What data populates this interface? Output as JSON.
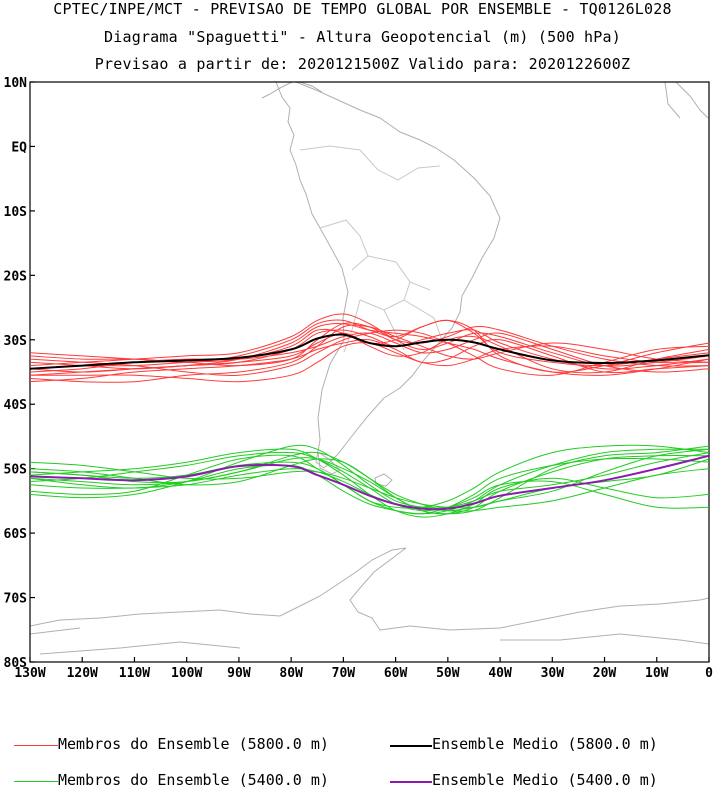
{
  "header": {
    "line1": "CPTEC/INPE/MCT - PREVISAO DE TEMPO GLOBAL POR ENSEMBLE - TQ0126L028",
    "line2": "Diagrama \"Spaguetti\" - Altura Geopotencial (m) (500 hPa)",
    "line3": "Previsao a partir de: 2020121500Z  Valido para: 2020122600Z"
  },
  "colors": {
    "member_5800": "#ff3a3a",
    "mean_5800": "#000000",
    "member_5400": "#22cc22",
    "mean_5400": "#8a1ab0",
    "coast": "#b0b0b0"
  },
  "legend": [
    {
      "label": "Membros do Ensemble (5800.0 m)",
      "color": "#ff3a3a"
    },
    {
      "label": "Ensemble Medio (5800.0 m)",
      "color": "#000000"
    },
    {
      "label": "Membros do Ensemble (5400.0 m)",
      "color": "#22cc22"
    },
    {
      "label": "Ensemble Medio (5400.0 m)",
      "color": "#8a1ab0"
    }
  ],
  "chart_data": {
    "type": "line",
    "xlim": [
      -130,
      0
    ],
    "ylim": [
      -80,
      10
    ],
    "x_ticks": [
      {
        "v": -130,
        "label": "130W"
      },
      {
        "v": -120,
        "label": "120W"
      },
      {
        "v": -110,
        "label": "110W"
      },
      {
        "v": -100,
        "label": "100W"
      },
      {
        "v": -90,
        "label": "90W"
      },
      {
        "v": -80,
        "label": "80W"
      },
      {
        "v": -70,
        "label": "70W"
      },
      {
        "v": -60,
        "label": "60W"
      },
      {
        "v": -50,
        "label": "50W"
      },
      {
        "v": -40,
        "label": "40W"
      },
      {
        "v": -30,
        "label": "30W"
      },
      {
        "v": -20,
        "label": "20W"
      },
      {
        "v": -10,
        "label": "10W"
      },
      {
        "v": 0,
        "label": "0"
      }
    ],
    "y_ticks": [
      {
        "v": 10,
        "label": "10N"
      },
      {
        "v": 0,
        "label": "EQ"
      },
      {
        "v": -10,
        "label": "10S"
      },
      {
        "v": -20,
        "label": "20S"
      },
      {
        "v": -30,
        "label": "30S"
      },
      {
        "v": -40,
        "label": "40S"
      },
      {
        "v": -50,
        "label": "50S"
      },
      {
        "v": -60,
        "label": "60S"
      },
      {
        "v": -70,
        "label": "70S"
      },
      {
        "v": -80,
        "label": "80S"
      }
    ],
    "x": [
      -130,
      -120,
      -110,
      -100,
      -90,
      -80,
      -75,
      -70,
      -65,
      -60,
      -55,
      -50,
      -45,
      -40,
      -30,
      -20,
      -10,
      0
    ],
    "series": [
      {
        "group": "member_5800",
        "values": [
          -32.0,
          -32.5,
          -33.0,
          -33.5,
          -32.5,
          -30.0,
          -27.5,
          -27.0,
          -28.5,
          -29.5,
          -28.0,
          -27.0,
          -29.0,
          -32.0,
          -33.5,
          -34.0,
          -33.0,
          -32.0
        ]
      },
      {
        "group": "member_5800",
        "values": [
          -34.5,
          -35.0,
          -34.5,
          -34.0,
          -33.5,
          -31.5,
          -29.0,
          -28.5,
          -29.5,
          -31.0,
          -30.0,
          -29.0,
          -28.5,
          -30.5,
          -33.0,
          -34.5,
          -34.0,
          -33.0
        ]
      },
      {
        "group": "member_5800",
        "values": [
          -36.5,
          -36.0,
          -35.0,
          -34.5,
          -34.0,
          -33.0,
          -31.5,
          -30.5,
          -30.0,
          -31.5,
          -33.5,
          -33.0,
          -31.0,
          -30.0,
          -32.5,
          -35.0,
          -34.5,
          -34.0
        ]
      },
      {
        "group": "member_5800",
        "values": [
          -33.0,
          -33.5,
          -34.0,
          -35.0,
          -35.5,
          -34.0,
          -32.0,
          -30.0,
          -29.0,
          -28.5,
          -29.0,
          -30.5,
          -32.5,
          -34.5,
          -35.5,
          -33.5,
          -31.5,
          -31.0
        ]
      },
      {
        "group": "member_5800",
        "values": [
          -35.5,
          -35.5,
          -35.5,
          -36.0,
          -36.5,
          -35.5,
          -33.5,
          -31.0,
          -30.5,
          -32.0,
          -33.5,
          -34.0,
          -33.0,
          -31.5,
          -31.0,
          -32.5,
          -33.5,
          -33.5
        ]
      },
      {
        "group": "member_5800",
        "values": [
          -34.0,
          -33.5,
          -33.0,
          -32.5,
          -32.0,
          -29.5,
          -27.0,
          -26.0,
          -27.5,
          -30.0,
          -31.5,
          -30.5,
          -29.0,
          -29.5,
          -32.0,
          -34.0,
          -33.5,
          -32.5
        ]
      },
      {
        "group": "member_5800",
        "values": [
          -33.5,
          -34.0,
          -34.5,
          -34.0,
          -33.5,
          -32.5,
          -30.5,
          -29.0,
          -30.5,
          -30.0,
          -28.0,
          -27.0,
          -28.5,
          -32.5,
          -35.0,
          -34.0,
          -32.0,
          -30.5
        ]
      },
      {
        "group": "member_5800",
        "values": [
          -35.0,
          -34.5,
          -33.5,
          -33.0,
          -33.0,
          -32.0,
          -31.0,
          -29.5,
          -29.0,
          -30.5,
          -32.0,
          -31.5,
          -30.0,
          -29.0,
          -31.5,
          -34.0,
          -35.0,
          -34.5
        ]
      },
      {
        "group": "member_5800",
        "values": [
          -36.0,
          -36.5,
          -36.5,
          -35.5,
          -35.0,
          -33.5,
          -31.0,
          -28.0,
          -28.0,
          -29.5,
          -31.0,
          -32.5,
          -33.0,
          -32.0,
          -30.5,
          -31.5,
          -33.0,
          -33.5
        ]
      },
      {
        "group": "member_5800",
        "values": [
          -32.5,
          -33.0,
          -33.0,
          -33.5,
          -34.0,
          -33.0,
          -30.0,
          -27.5,
          -28.0,
          -30.0,
          -30.5,
          -29.5,
          -28.0,
          -28.5,
          -31.0,
          -33.0,
          -34.0,
          -34.0
        ]
      },
      {
        "group": "member_5800",
        "values": [
          -34.5,
          -34.0,
          -34.0,
          -33.5,
          -33.0,
          -31.0,
          -28.5,
          -29.0,
          -31.0,
          -32.5,
          -32.0,
          -30.0,
          -29.5,
          -31.0,
          -34.5,
          -35.0,
          -33.0,
          -31.5
        ]
      },
      {
        "group": "member_5800",
        "values": [
          -35.5,
          -35.0,
          -34.5,
          -34.0,
          -33.0,
          -30.5,
          -28.0,
          -27.5,
          -28.5,
          -29.0,
          -29.5,
          -30.5,
          -31.5,
          -33.0,
          -35.0,
          -35.5,
          -34.5,
          -33.0
        ]
      },
      {
        "group": "mean_5800",
        "values": [
          -34.5,
          -34.0,
          -33.5,
          -33.2,
          -32.8,
          -31.5,
          -29.8,
          -29.2,
          -30.5,
          -31.0,
          -30.4,
          -30.0,
          -30.4,
          -31.5,
          -33.2,
          -33.6,
          -33.2,
          -32.4
        ]
      },
      {
        "group": "member_5400",
        "values": [
          -51.5,
          -52.5,
          -53.0,
          -52.0,
          -50.0,
          -49.5,
          -51.0,
          -53.5,
          -55.5,
          -56.5,
          -57.0,
          -56.5,
          -55.0,
          -52.5,
          -49.5,
          -47.5,
          -47.0,
          -47.0
        ]
      },
      {
        "group": "member_5400",
        "values": [
          -50.0,
          -50.5,
          -51.5,
          -52.5,
          -52.0,
          -49.5,
          -48.5,
          -49.0,
          -51.5,
          -54.5,
          -56.5,
          -57.0,
          -56.0,
          -53.5,
          -50.5,
          -48.5,
          -48.0,
          -48.0
        ]
      },
      {
        "group": "member_5400",
        "values": [
          -53.5,
          -54.0,
          -53.5,
          -51.0,
          -48.5,
          -48.0,
          -50.0,
          -52.5,
          -55.0,
          -56.0,
          -56.0,
          -55.0,
          -53.0,
          -50.5,
          -47.5,
          -46.5,
          -46.5,
          -47.5
        ]
      },
      {
        "group": "member_5400",
        "values": [
          -52.0,
          -51.5,
          -50.5,
          -49.5,
          -48.0,
          -47.5,
          -48.5,
          -50.5,
          -53.0,
          -55.5,
          -56.5,
          -56.0,
          -54.5,
          -52.5,
          -52.0,
          -54.0,
          -56.0,
          -56.0
        ]
      },
      {
        "group": "member_5400",
        "values": [
          -49.0,
          -49.5,
          -50.5,
          -51.5,
          -51.5,
          -50.5,
          -50.5,
          -51.5,
          -53.0,
          -54.5,
          -55.5,
          -56.0,
          -56.0,
          -55.0,
          -53.0,
          -52.0,
          -51.0,
          -48.5
        ]
      },
      {
        "group": "member_5400",
        "values": [
          -51.0,
          -50.5,
          -50.0,
          -49.0,
          -47.5,
          -47.0,
          -48.5,
          -51.0,
          -54.0,
          -56.5,
          -57.5,
          -57.0,
          -55.5,
          -53.0,
          -51.5,
          -53.0,
          -54.5,
          -54.0
        ]
      },
      {
        "group": "member_5400",
        "values": [
          -50.5,
          -51.0,
          -52.0,
          -52.0,
          -50.5,
          -48.5,
          -48.5,
          -50.0,
          -52.0,
          -54.5,
          -56.5,
          -57.0,
          -56.5,
          -54.5,
          -50.0,
          -48.0,
          -47.5,
          -46.5
        ]
      },
      {
        "group": "member_5400",
        "values": [
          -52.5,
          -53.0,
          -53.0,
          -52.5,
          -51.0,
          -50.0,
          -50.5,
          -52.0,
          -54.0,
          -55.5,
          -56.0,
          -56.0,
          -55.0,
          -53.5,
          -52.5,
          -51.0,
          -49.0,
          -47.5
        ]
      },
      {
        "group": "member_5400",
        "values": [
          -54.0,
          -54.5,
          -54.0,
          -52.0,
          -49.0,
          -46.5,
          -47.0,
          -49.5,
          -52.5,
          -55.0,
          -56.0,
          -56.5,
          -56.0,
          -55.0,
          -53.5,
          -50.5,
          -48.0,
          -47.0
        ]
      },
      {
        "group": "member_5400",
        "values": [
          -50.5,
          -51.0,
          -51.5,
          -51.0,
          -49.5,
          -49.0,
          -50.0,
          -52.5,
          -55.0,
          -56.5,
          -57.0,
          -56.0,
          -54.0,
          -51.5,
          -49.5,
          -48.5,
          -48.5,
          -49.0
        ]
      },
      {
        "group": "member_5400",
        "values": [
          -51.5,
          -52.0,
          -52.5,
          -52.0,
          -50.5,
          -48.0,
          -47.5,
          -49.0,
          -51.5,
          -54.0,
          -55.5,
          -56.5,
          -56.5,
          -56.0,
          -55.0,
          -53.0,
          -51.0,
          -50.0
        ]
      },
      {
        "group": "mean_5400",
        "values": [
          -51.2,
          -51.5,
          -51.8,
          -51.2,
          -49.6,
          -49.6,
          -51.0,
          -52.5,
          -54.2,
          -55.5,
          -56.2,
          -56.2,
          -55.4,
          -54.2,
          -53.0,
          -51.8,
          -50.0,
          -48.0
        ]
      }
    ]
  }
}
